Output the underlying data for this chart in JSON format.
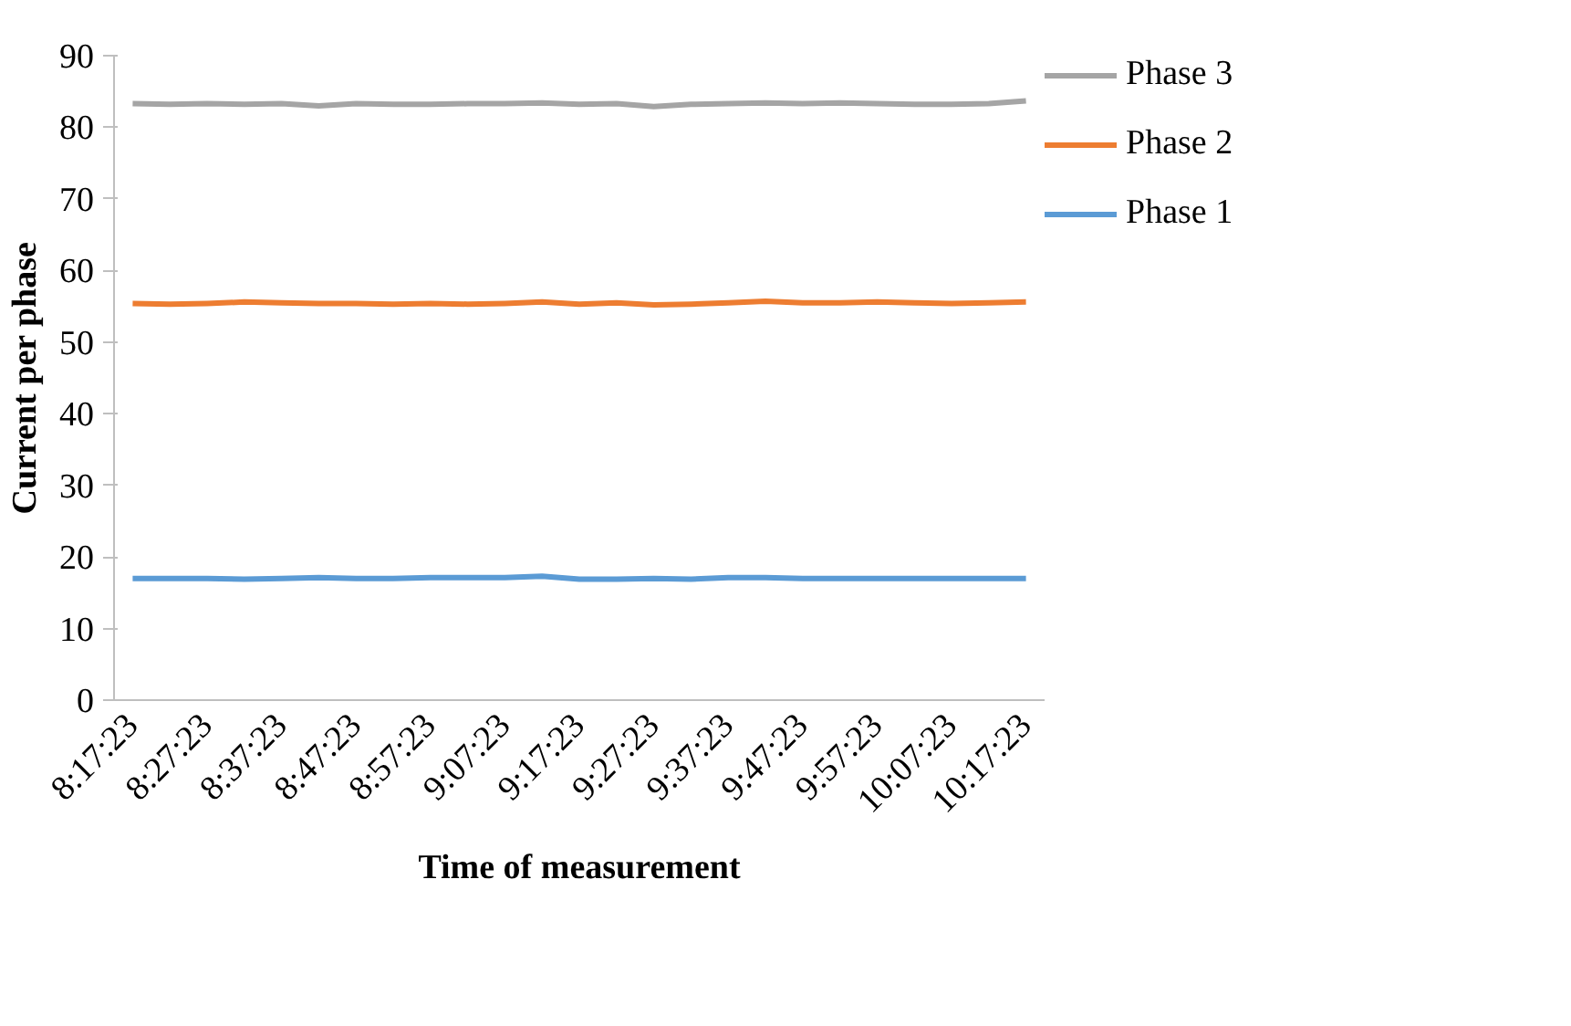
{
  "chart_data": {
    "type": "line",
    "xlabel": "Time of measurement",
    "ylabel": "Current per phase",
    "categories": [
      "8:17:23",
      null,
      "8:27:23",
      null,
      "8:37:23",
      null,
      "8:47:23",
      null,
      "8:57:23",
      null,
      "9:07:23",
      null,
      "9:17:23",
      null,
      "9:27:23",
      null,
      "9:37:23",
      null,
      "9:47:23",
      null,
      "9:57:23",
      null,
      "10:07:23",
      null,
      "10:17:23"
    ],
    "series": [
      {
        "name": "Phase 3",
        "color": "#a5a5a5",
        "values": [
          83.3,
          83.2,
          83.3,
          83.2,
          83.3,
          83.0,
          83.3,
          83.2,
          83.2,
          83.3,
          83.3,
          83.4,
          83.2,
          83.3,
          82.9,
          83.2,
          83.3,
          83.4,
          83.3,
          83.4,
          83.3,
          83.2,
          83.2,
          83.3,
          83.7
        ]
      },
      {
        "name": "Phase 2",
        "color": "#ed7d31",
        "values": [
          55.4,
          55.3,
          55.4,
          55.6,
          55.5,
          55.4,
          55.4,
          55.3,
          55.4,
          55.3,
          55.4,
          55.6,
          55.3,
          55.5,
          55.2,
          55.3,
          55.5,
          55.7,
          55.5,
          55.5,
          55.6,
          55.5,
          55.4,
          55.5,
          55.6
        ]
      },
      {
        "name": "Phase 1",
        "color": "#5b9bd5",
        "values": [
          17.0,
          17.0,
          17.0,
          16.9,
          17.0,
          17.1,
          17.0,
          17.0,
          17.1,
          17.1,
          17.1,
          17.3,
          16.9,
          16.9,
          17.0,
          16.9,
          17.1,
          17.1,
          17.0,
          17.0,
          17.0,
          17.0,
          17.0,
          17.0,
          17.0
        ]
      }
    ],
    "ylim": [
      0,
      90
    ],
    "yticks": [
      0,
      10,
      20,
      30,
      40,
      50,
      60,
      70,
      80,
      90
    ],
    "grid": false,
    "legend": "right",
    "marker": "none",
    "line_style": "solid"
  }
}
